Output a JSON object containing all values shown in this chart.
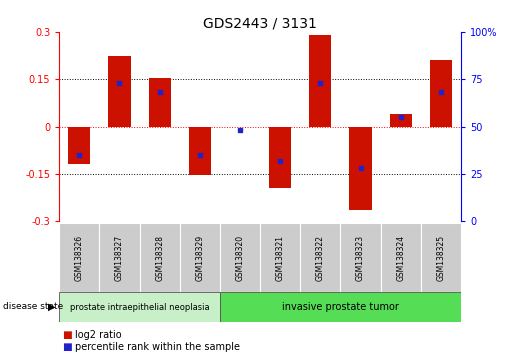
{
  "title": "GDS2443 / 3131",
  "samples": [
    "GSM138326",
    "GSM138327",
    "GSM138328",
    "GSM138329",
    "GSM138320",
    "GSM138321",
    "GSM138322",
    "GSM138323",
    "GSM138324",
    "GSM138325"
  ],
  "log2_ratio": [
    -0.12,
    0.225,
    0.155,
    -0.155,
    0.0,
    -0.195,
    0.29,
    -0.265,
    0.04,
    0.21
  ],
  "percentile_rank": [
    35,
    73,
    68,
    35,
    48,
    32,
    73,
    28,
    55,
    68
  ],
  "groups": [
    {
      "label": "prostate intraepithelial neoplasia",
      "start": 0,
      "end": 4
    },
    {
      "label": "invasive prostate tumor",
      "start": 4,
      "end": 10
    }
  ],
  "ylim": [
    -0.3,
    0.3
  ],
  "yticks_left": [
    -0.3,
    -0.15,
    0,
    0.15,
    0.3
  ],
  "yticks_right": [
    0,
    25,
    50,
    75,
    100
  ],
  "bar_color": "#cc1100",
  "dot_color": "#2222cc",
  "bar_width": 0.55,
  "legend_log2": "log2 ratio",
  "legend_pct": "percentile rank within the sample",
  "disease_state_label": "disease state",
  "group1_color": "#c8f0c8",
  "group2_color": "#55dd55",
  "label_bg": "#cccccc",
  "label_border": "#aaaaaa"
}
